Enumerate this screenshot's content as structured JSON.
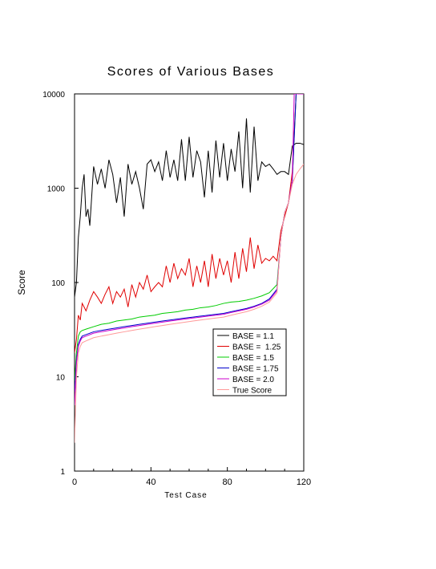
{
  "chart_data": {
    "type": "line",
    "title": "Scores of Various Bases",
    "xlabel": "Test Case",
    "ylabel": "Score",
    "xlim": [
      0,
      120
    ],
    "ylim": [
      1,
      10000
    ],
    "yscale": "log",
    "grid": false,
    "legend_position": "lower-right",
    "x_ticks": [
      0,
      40,
      80,
      120
    ],
    "x_tick_labels": [
      "0",
      "40",
      "80",
      "120"
    ],
    "y_ticks": [
      1,
      10,
      100,
      1000,
      10000
    ],
    "y_tick_labels": [
      "1",
      "10",
      "100",
      "1000",
      "10000"
    ],
    "series": [
      {
        "name": "BASE = 1.1",
        "color": "#000000",
        "points": [
          [
            0,
            70
          ],
          [
            1,
            100
          ],
          [
            2,
            300
          ],
          [
            3,
            500
          ],
          [
            4,
            1000
          ],
          [
            5,
            1400
          ],
          [
            6,
            500
          ],
          [
            7,
            600
          ],
          [
            8,
            400
          ],
          [
            10,
            1700
          ],
          [
            12,
            1100
          ],
          [
            14,
            1600
          ],
          [
            16,
            1000
          ],
          [
            18,
            2000
          ],
          [
            20,
            1400
          ],
          [
            22,
            700
          ],
          [
            24,
            1300
          ],
          [
            26,
            500
          ],
          [
            28,
            1800
          ],
          [
            30,
            1100
          ],
          [
            32,
            1500
          ],
          [
            34,
            1000
          ],
          [
            36,
            600
          ],
          [
            38,
            1800
          ],
          [
            40,
            2000
          ],
          [
            42,
            1500
          ],
          [
            44,
            1900
          ],
          [
            46,
            1200
          ],
          [
            48,
            2500
          ],
          [
            50,
            1300
          ],
          [
            52,
            2000
          ],
          [
            54,
            1200
          ],
          [
            56,
            3300
          ],
          [
            58,
            1200
          ],
          [
            60,
            3500
          ],
          [
            62,
            1300
          ],
          [
            64,
            2500
          ],
          [
            66,
            1900
          ],
          [
            68,
            800
          ],
          [
            70,
            2500
          ],
          [
            72,
            900
          ],
          [
            74,
            3200
          ],
          [
            76,
            1300
          ],
          [
            78,
            3000
          ],
          [
            80,
            1200
          ],
          [
            82,
            2600
          ],
          [
            84,
            1500
          ],
          [
            86,
            4000
          ],
          [
            88,
            1000
          ],
          [
            90,
            5500
          ],
          [
            92,
            900
          ],
          [
            94,
            4500
          ],
          [
            96,
            1200
          ],
          [
            98,
            1900
          ],
          [
            100,
            1700
          ],
          [
            102,
            1800
          ],
          [
            104,
            1600
          ],
          [
            106,
            1400
          ],
          [
            108,
            1500
          ],
          [
            110,
            1500
          ],
          [
            112,
            1400
          ],
          [
            114,
            2800
          ],
          [
            116,
            3000
          ],
          [
            118,
            3000
          ],
          [
            120,
            2900
          ]
        ]
      },
      {
        "name": "BASE =  1.25",
        "color": "#e00000",
        "points": [
          [
            0,
            18
          ],
          [
            1,
            25
          ],
          [
            2,
            45
          ],
          [
            3,
            40
          ],
          [
            4,
            60
          ],
          [
            5,
            55
          ],
          [
            6,
            50
          ],
          [
            8,
            65
          ],
          [
            10,
            80
          ],
          [
            12,
            70
          ],
          [
            14,
            60
          ],
          [
            16,
            75
          ],
          [
            18,
            90
          ],
          [
            20,
            60
          ],
          [
            22,
            80
          ],
          [
            24,
            70
          ],
          [
            26,
            85
          ],
          [
            28,
            55
          ],
          [
            30,
            95
          ],
          [
            32,
            70
          ],
          [
            34,
            100
          ],
          [
            36,
            85
          ],
          [
            38,
            120
          ],
          [
            40,
            80
          ],
          [
            42,
            90
          ],
          [
            44,
            100
          ],
          [
            46,
            90
          ],
          [
            48,
            150
          ],
          [
            50,
            100
          ],
          [
            52,
            160
          ],
          [
            54,
            110
          ],
          [
            56,
            140
          ],
          [
            58,
            120
          ],
          [
            60,
            180
          ],
          [
            62,
            90
          ],
          [
            64,
            150
          ],
          [
            66,
            100
          ],
          [
            68,
            170
          ],
          [
            70,
            90
          ],
          [
            72,
            200
          ],
          [
            74,
            110
          ],
          [
            76,
            180
          ],
          [
            78,
            120
          ],
          [
            80,
            170
          ],
          [
            82,
            100
          ],
          [
            84,
            210
          ],
          [
            86,
            110
          ],
          [
            88,
            230
          ],
          [
            90,
            130
          ],
          [
            92,
            300
          ],
          [
            94,
            140
          ],
          [
            96,
            250
          ],
          [
            98,
            160
          ],
          [
            100,
            180
          ],
          [
            102,
            170
          ],
          [
            104,
            190
          ],
          [
            106,
            170
          ],
          [
            108,
            350
          ],
          [
            110,
            500
          ],
          [
            112,
            700
          ],
          [
            114,
            1500
          ],
          [
            116,
            10000
          ],
          [
            118,
            10000
          ],
          [
            120,
            10000
          ]
        ]
      },
      {
        "name": "BASE = 1.5",
        "color": "#00cc00",
        "points": [
          [
            0,
            9
          ],
          [
            1,
            18
          ],
          [
            2,
            27
          ],
          [
            3,
            30
          ],
          [
            4,
            31
          ],
          [
            6,
            32
          ],
          [
            10,
            34
          ],
          [
            14,
            36
          ],
          [
            18,
            37
          ],
          [
            22,
            39
          ],
          [
            26,
            40
          ],
          [
            30,
            41
          ],
          [
            34,
            43
          ],
          [
            38,
            44
          ],
          [
            42,
            45
          ],
          [
            46,
            47
          ],
          [
            50,
            48
          ],
          [
            54,
            49
          ],
          [
            58,
            51
          ],
          [
            62,
            52
          ],
          [
            66,
            54
          ],
          [
            70,
            55
          ],
          [
            74,
            57
          ],
          [
            78,
            60
          ],
          [
            82,
            62
          ],
          [
            86,
            63
          ],
          [
            90,
            65
          ],
          [
            94,
            68
          ],
          [
            98,
            72
          ],
          [
            102,
            78
          ],
          [
            106,
            95
          ],
          [
            108,
            300
          ],
          [
            110,
            550
          ],
          [
            112,
            700
          ],
          [
            114,
            1200
          ],
          [
            116,
            10000
          ],
          [
            118,
            10000
          ],
          [
            120,
            10000
          ]
        ]
      },
      {
        "name": "BASE = 1.75",
        "color": "#0000cc",
        "points": [
          [
            0,
            7
          ],
          [
            1,
            15
          ],
          [
            2,
            22
          ],
          [
            3,
            25
          ],
          [
            4,
            27
          ],
          [
            6,
            28
          ],
          [
            10,
            30
          ],
          [
            14,
            31
          ],
          [
            18,
            32
          ],
          [
            22,
            33
          ],
          [
            26,
            34
          ],
          [
            30,
            35
          ],
          [
            34,
            36
          ],
          [
            38,
            37
          ],
          [
            42,
            38
          ],
          [
            46,
            39
          ],
          [
            50,
            40
          ],
          [
            54,
            41
          ],
          [
            58,
            42
          ],
          [
            62,
            43
          ],
          [
            66,
            44
          ],
          [
            70,
            45
          ],
          [
            74,
            46
          ],
          [
            78,
            47
          ],
          [
            82,
            49
          ],
          [
            86,
            51
          ],
          [
            90,
            53
          ],
          [
            94,
            56
          ],
          [
            98,
            60
          ],
          [
            102,
            67
          ],
          [
            106,
            85
          ],
          [
            108,
            300
          ],
          [
            110,
            550
          ],
          [
            112,
            700
          ],
          [
            114,
            1200
          ],
          [
            116,
            10000
          ],
          [
            118,
            10000
          ],
          [
            120,
            10000
          ]
        ]
      },
      {
        "name": "BASE = 2.0",
        "color": "#cc00cc",
        "points": [
          [
            0,
            5
          ],
          [
            1,
            14
          ],
          [
            2,
            21
          ],
          [
            3,
            24
          ],
          [
            4,
            26
          ],
          [
            6,
            27
          ],
          [
            10,
            29
          ],
          [
            14,
            30
          ],
          [
            18,
            31
          ],
          [
            22,
            32
          ],
          [
            26,
            33
          ],
          [
            30,
            34
          ],
          [
            34,
            35
          ],
          [
            38,
            36
          ],
          [
            42,
            37
          ],
          [
            46,
            38
          ],
          [
            50,
            39
          ],
          [
            54,
            40
          ],
          [
            58,
            41
          ],
          [
            62,
            42
          ],
          [
            66,
            43
          ],
          [
            70,
            44
          ],
          [
            74,
            45
          ],
          [
            78,
            46
          ],
          [
            82,
            48
          ],
          [
            86,
            50
          ],
          [
            90,
            52
          ],
          [
            94,
            55
          ],
          [
            98,
            59
          ],
          [
            102,
            65
          ],
          [
            106,
            82
          ],
          [
            108,
            300
          ],
          [
            110,
            550
          ],
          [
            112,
            700
          ],
          [
            114,
            1200
          ],
          [
            115,
            10000
          ],
          [
            116,
            10000
          ],
          [
            118,
            10000
          ],
          [
            120,
            10000
          ]
        ]
      },
      {
        "name": "True Score",
        "color": "#ff9999",
        "points": [
          [
            0,
            2
          ],
          [
            1,
            10
          ],
          [
            2,
            18
          ],
          [
            3,
            21
          ],
          [
            4,
            23
          ],
          [
            6,
            24
          ],
          [
            10,
            26
          ],
          [
            14,
            27
          ],
          [
            18,
            28
          ],
          [
            22,
            29
          ],
          [
            26,
            30
          ],
          [
            30,
            31
          ],
          [
            34,
            32
          ],
          [
            38,
            33
          ],
          [
            42,
            34
          ],
          [
            46,
            35
          ],
          [
            50,
            36
          ],
          [
            54,
            37
          ],
          [
            58,
            38
          ],
          [
            62,
            39
          ],
          [
            66,
            40
          ],
          [
            70,
            41
          ],
          [
            74,
            42
          ],
          [
            78,
            43
          ],
          [
            82,
            45
          ],
          [
            86,
            47
          ],
          [
            90,
            49
          ],
          [
            94,
            52
          ],
          [
            98,
            56
          ],
          [
            102,
            62
          ],
          [
            106,
            78
          ],
          [
            108,
            300
          ],
          [
            110,
            550
          ],
          [
            112,
            700
          ],
          [
            114,
            1100
          ],
          [
            116,
            1400
          ],
          [
            118,
            1600
          ],
          [
            120,
            1800
          ]
        ]
      }
    ]
  }
}
